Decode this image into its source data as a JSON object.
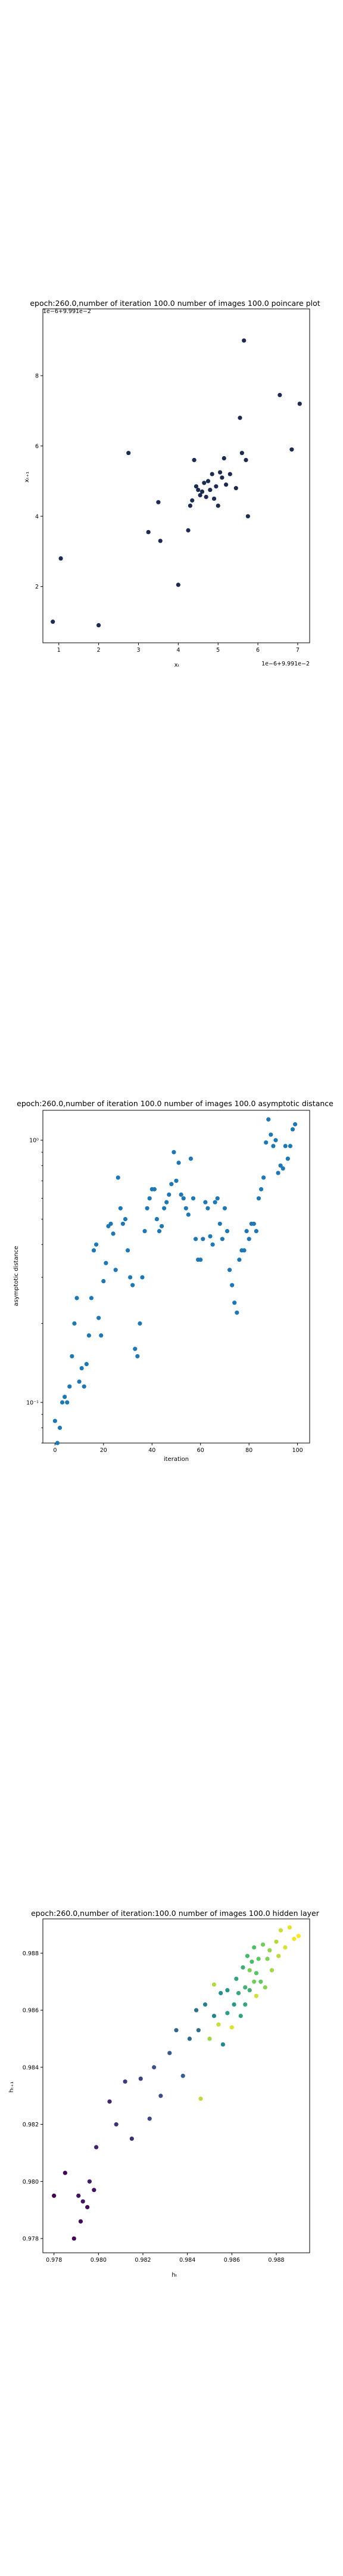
{
  "chart_data": [
    {
      "type": "scatter",
      "title": "epoch:260.0,number of iteration 100.0 number of images 100.0 poincare plot",
      "xlabel": "xₜ",
      "ylabel": "xₜ₊₁",
      "x_offset_text": "1e−6+9.991e−2",
      "y_offset_text": "1e−6+9.991e−2",
      "xlim": [
        0.6,
        7.3
      ],
      "ylim": [
        0.4,
        9.9
      ],
      "xticks": [
        1,
        2,
        3,
        4,
        5,
        6,
        7
      ],
      "yticks": [
        2,
        4,
        6,
        8
      ],
      "marker_color": "#1c2b4e",
      "points": [
        [
          0.85,
          1.0
        ],
        [
          1.05,
          2.8
        ],
        [
          2.0,
          0.9
        ],
        [
          2.75,
          5.8
        ],
        [
          3.25,
          3.55
        ],
        [
          3.5,
          4.4
        ],
        [
          3.55,
          3.3
        ],
        [
          4.0,
          2.05
        ],
        [
          4.25,
          3.6
        ],
        [
          4.3,
          4.3
        ],
        [
          4.35,
          4.45
        ],
        [
          4.4,
          5.6
        ],
        [
          4.45,
          4.85
        ],
        [
          4.5,
          4.75
        ],
        [
          4.55,
          4.6
        ],
        [
          4.6,
          4.7
        ],
        [
          4.65,
          4.95
        ],
        [
          4.7,
          4.55
        ],
        [
          4.75,
          5.0
        ],
        [
          4.8,
          4.75
        ],
        [
          4.85,
          5.2
        ],
        [
          4.9,
          4.5
        ],
        [
          4.95,
          4.85
        ],
        [
          5.0,
          4.3
        ],
        [
          5.05,
          5.25
        ],
        [
          5.1,
          5.1
        ],
        [
          5.15,
          5.65
        ],
        [
          5.2,
          4.9
        ],
        [
          5.3,
          5.2
        ],
        [
          5.45,
          4.8
        ],
        [
          5.55,
          6.8
        ],
        [
          5.6,
          5.8
        ],
        [
          5.65,
          9.0
        ],
        [
          5.7,
          5.6
        ],
        [
          5.75,
          4.0
        ],
        [
          6.55,
          7.45
        ],
        [
          6.85,
          5.9
        ],
        [
          7.05,
          7.2
        ]
      ]
    },
    {
      "type": "scatter",
      "title": "epoch:260.0,number of iteration 100.0  number of images 100.0 asymptotic distance",
      "xlabel": "iteration",
      "ylabel": "asymptotic distance",
      "yscale": "log",
      "xlim": [
        -5,
        105
      ],
      "ylim": [
        0.07,
        1.3
      ],
      "xticks": [
        0,
        20,
        40,
        60,
        80,
        100
      ],
      "yticks": [
        0.1,
        1.0
      ],
      "ytick_labels": [
        "10⁻¹",
        "10⁰"
      ],
      "marker_color": "#1f77b4",
      "y": [
        0.085,
        0.07,
        0.08,
        0.1,
        0.105,
        0.1,
        0.115,
        0.15,
        0.2,
        0.25,
        0.12,
        0.135,
        0.115,
        0.14,
        0.18,
        0.25,
        0.38,
        0.4,
        0.21,
        0.18,
        0.29,
        0.34,
        0.47,
        0.48,
        0.44,
        0.32,
        0.72,
        0.55,
        0.48,
        0.5,
        0.38,
        0.3,
        0.28,
        0.16,
        0.15,
        0.2,
        0.3,
        0.45,
        0.55,
        0.6,
        0.65,
        0.65,
        0.5,
        0.45,
        0.47,
        0.55,
        0.58,
        0.62,
        0.68,
        0.9,
        0.7,
        0.82,
        0.62,
        0.6,
        0.55,
        0.52,
        0.85,
        0.6,
        0.42,
        0.35,
        0.35,
        0.42,
        0.58,
        0.55,
        0.43,
        0.4,
        0.58,
        0.6,
        0.48,
        0.42,
        0.55,
        0.45,
        0.32,
        0.28,
        0.24,
        0.22,
        0.35,
        0.38,
        0.38,
        0.45,
        0.42,
        0.48,
        0.48,
        0.45,
        0.6,
        0.65,
        0.72,
        0.98,
        1.2,
        1.05,
        0.95,
        1.0,
        0.75,
        0.8,
        0.78,
        0.95,
        0.85,
        0.95,
        1.1,
        1.15
      ]
    },
    {
      "type": "scatter",
      "title": "epoch:260.0,number of iteration:100.0  number of images 100.0 hidden layer",
      "xlabel": "hₜ",
      "ylabel": "hₜ₊₁",
      "xlim": [
        0.9775,
        0.9895
      ],
      "ylim": [
        0.9775,
        0.9892
      ],
      "xticks": [
        0.978,
        0.98,
        0.982,
        0.984,
        0.986,
        0.988
      ],
      "yticks": [
        0.978,
        0.98,
        0.982,
        0.984,
        0.986,
        0.988
      ],
      "colormap": "viridis",
      "points": [
        [
          0.978,
          0.9795,
          0.0
        ],
        [
          0.9785,
          0.9803,
          0.02
        ],
        [
          0.9789,
          0.978,
          0.01
        ],
        [
          0.9791,
          0.9795,
          0.05
        ],
        [
          0.9792,
          0.9786,
          0.03
        ],
        [
          0.9793,
          0.9793,
          0.06
        ],
        [
          0.9795,
          0.9791,
          0.04
        ],
        [
          0.9796,
          0.98,
          0.08
        ],
        [
          0.9798,
          0.9797,
          0.05
        ],
        [
          0.9799,
          0.9812,
          0.1
        ],
        [
          0.9805,
          0.9828,
          0.12
        ],
        [
          0.9808,
          0.982,
          0.15
        ],
        [
          0.9812,
          0.9835,
          0.18
        ],
        [
          0.9815,
          0.9815,
          0.14
        ],
        [
          0.9819,
          0.9836,
          0.2
        ],
        [
          0.9823,
          0.9822,
          0.22
        ],
        [
          0.9825,
          0.984,
          0.25
        ],
        [
          0.9828,
          0.983,
          0.23
        ],
        [
          0.9832,
          0.9845,
          0.28
        ],
        [
          0.9835,
          0.9853,
          0.32
        ],
        [
          0.9838,
          0.9837,
          0.3
        ],
        [
          0.9841,
          0.985,
          0.35
        ],
        [
          0.9844,
          0.986,
          0.38
        ],
        [
          0.9845,
          0.9853,
          0.36
        ],
        [
          0.9846,
          0.9829,
          0.9
        ],
        [
          0.9848,
          0.9862,
          0.42
        ],
        [
          0.985,
          0.985,
          0.85
        ],
        [
          0.9852,
          0.9858,
          0.45
        ],
        [
          0.9852,
          0.9869,
          0.88
        ],
        [
          0.9854,
          0.9855,
          0.92
        ],
        [
          0.9855,
          0.9866,
          0.5
        ],
        [
          0.9856,
          0.9848,
          0.47
        ],
        [
          0.9858,
          0.9867,
          0.52
        ],
        [
          0.9858,
          0.9859,
          0.55
        ],
        [
          0.986,
          0.9854,
          0.95
        ],
        [
          0.9861,
          0.9862,
          0.53
        ],
        [
          0.9862,
          0.9871,
          0.58
        ],
        [
          0.9863,
          0.9866,
          0.6
        ],
        [
          0.9864,
          0.9858,
          0.57
        ],
        [
          0.9865,
          0.9875,
          0.62
        ],
        [
          0.9866,
          0.9868,
          0.64
        ],
        [
          0.9866,
          0.9862,
          0.59
        ],
        [
          0.9867,
          0.9879,
          0.66
        ],
        [
          0.9868,
          0.9874,
          0.8
        ],
        [
          0.9868,
          0.9867,
          0.63
        ],
        [
          0.9869,
          0.9877,
          0.68
        ],
        [
          0.987,
          0.987,
          0.78
        ],
        [
          0.987,
          0.9882,
          0.7
        ],
        [
          0.9871,
          0.9873,
          0.72
        ],
        [
          0.9871,
          0.9865,
          0.93
        ],
        [
          0.9872,
          0.9878,
          0.74
        ],
        [
          0.9873,
          0.987,
          0.76
        ],
        [
          0.9874,
          0.9883,
          0.78
        ],
        [
          0.9875,
          0.9868,
          0.82
        ],
        [
          0.9876,
          0.9878,
          0.8
        ],
        [
          0.9877,
          0.9881,
          0.84
        ],
        [
          0.9878,
          0.9874,
          0.86
        ],
        [
          0.988,
          0.9884,
          0.88
        ],
        [
          0.9881,
          0.9879,
          0.9
        ],
        [
          0.9882,
          0.9888,
          0.92
        ],
        [
          0.9884,
          0.9882,
          0.94
        ],
        [
          0.9886,
          0.9889,
          0.96
        ],
        [
          0.9888,
          0.9885,
          0.98
        ],
        [
          0.989,
          0.9886,
          1.0
        ]
      ]
    }
  ]
}
